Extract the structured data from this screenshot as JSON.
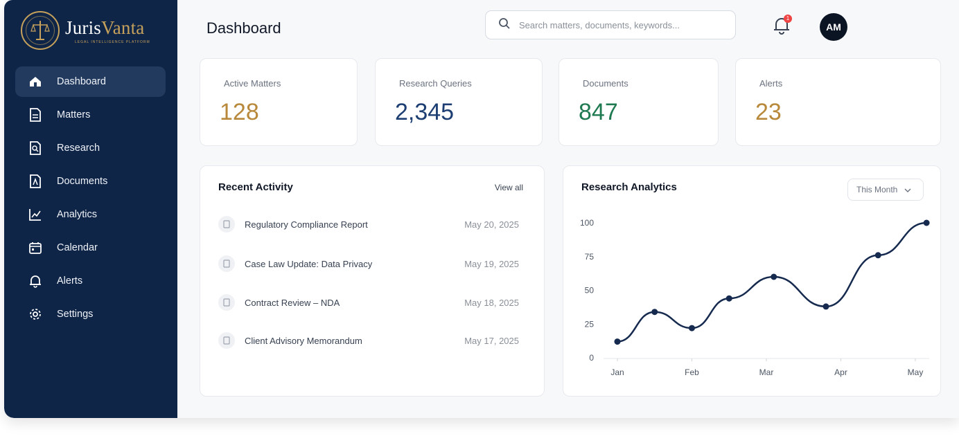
{
  "brand": {
    "name_part1": "Juris",
    "name_part2": "Vanta",
    "tagline": "Legal Intelligence Platform"
  },
  "nav": [
    {
      "label": "Dashboard",
      "icon": "home-icon",
      "active": true
    },
    {
      "label": "Matters",
      "icon": "document-icon",
      "active": false
    },
    {
      "label": "Research",
      "icon": "research-icon",
      "active": false
    },
    {
      "label": "Documents",
      "icon": "pdf-icon",
      "active": false
    },
    {
      "label": "Analytics",
      "icon": "chart-icon",
      "active": false
    },
    {
      "label": "Calendar",
      "icon": "calendar-icon",
      "active": false
    },
    {
      "label": "Alerts",
      "icon": "bell-icon",
      "active": false
    },
    {
      "label": "Settings",
      "icon": "gear-icon",
      "active": false
    }
  ],
  "header": {
    "title": "Dashboard",
    "search_placeholder": "Search matters, documents, keywords...",
    "notification_count": "1",
    "avatar_initials": "AM"
  },
  "stats": [
    {
      "label": "Active Matters",
      "value": "128",
      "color": "#b8893a"
    },
    {
      "label": "Research Queries",
      "value": "2,345",
      "color": "#1d3e72"
    },
    {
      "label": "Documents",
      "value": "847",
      "color": "#1f7a52"
    },
    {
      "label": "Alerts",
      "value": "23",
      "color": "#b8893a"
    }
  ],
  "activity": {
    "title": "Recent Activity",
    "view_all": "View all",
    "items": [
      {
        "title": "Regulatory Compliance Report",
        "date": "May 20, 2025"
      },
      {
        "title": "Case Law Update: Data Privacy",
        "date": "May 19, 2025"
      },
      {
        "title": "Contract Review – NDA",
        "date": "May 18, 2025"
      },
      {
        "title": "Client Advisory Memorandum",
        "date": "May 17, 2025"
      }
    ]
  },
  "analytics": {
    "title": "Research Analytics",
    "period": "This Month"
  },
  "chart_data": {
    "type": "line",
    "title": "",
    "xlabel": "",
    "ylabel": "",
    "x_ticks": [
      "Jan",
      "Feb",
      "Mar",
      "Apr",
      "May"
    ],
    "y_ticks": [
      0,
      25,
      50,
      75,
      100
    ],
    "ylim": [
      0,
      100
    ],
    "xlim": [
      0,
      4
    ],
    "grid": false,
    "series": [
      {
        "x": [
          0,
          0.5,
          1.0,
          1.5,
          2.1,
          2.8,
          3.5,
          4.15
        ],
        "values": [
          12,
          34,
          22,
          44,
          60,
          38,
          76,
          100
        ],
        "color": "#152a4e"
      }
    ]
  }
}
